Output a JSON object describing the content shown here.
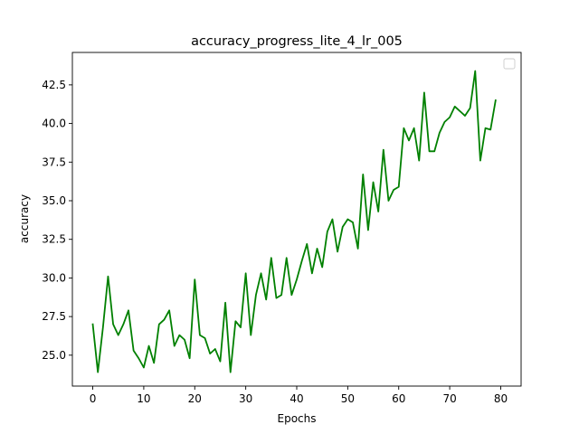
{
  "chart_data": {
    "type": "line",
    "title": "accuracy_progress_lite_4_lr_005",
    "xlabel": "Epochs",
    "ylabel": "accuracy",
    "xlim": [
      -4,
      84
    ],
    "ylim": [
      23.0,
      44.6
    ],
    "xticks": [
      0,
      10,
      20,
      30,
      40,
      50,
      60,
      70,
      80
    ],
    "yticks": [
      25.0,
      27.5,
      30.0,
      32.5,
      35.0,
      37.5,
      40.0,
      42.5
    ],
    "xtick_labels": [
      "0",
      "10",
      "20",
      "30",
      "40",
      "50",
      "60",
      "70",
      "80"
    ],
    "ytick_labels": [
      "25.0",
      "27.5",
      "30.0",
      "32.5",
      "35.0",
      "37.5",
      "40.0",
      "42.5"
    ],
    "grid": false,
    "legend": {
      "placement": "upper right",
      "entries": []
    },
    "series": [
      {
        "color": "#008000",
        "x": [
          0,
          1,
          2,
          3,
          4,
          5,
          6,
          7,
          8,
          9,
          10,
          11,
          12,
          13,
          14,
          15,
          16,
          17,
          18,
          19,
          20,
          21,
          22,
          23,
          24,
          25,
          26,
          27,
          28,
          29,
          30,
          31,
          32,
          33,
          34,
          35,
          36,
          37,
          38,
          39,
          40,
          41,
          42,
          43,
          44,
          45,
          46,
          47,
          48,
          49,
          50,
          51,
          52,
          53,
          54,
          55,
          56,
          57,
          58,
          59,
          60,
          61,
          62,
          63,
          64,
          65,
          66,
          67,
          68,
          69,
          70,
          71,
          72,
          73,
          74,
          75,
          76,
          77,
          78,
          79
        ],
        "values": [
          27.0,
          23.9,
          26.8,
          30.1,
          27.0,
          26.3,
          27.0,
          27.9,
          25.3,
          24.8,
          24.2,
          25.6,
          24.5,
          27.0,
          27.3,
          27.9,
          25.6,
          26.3,
          26.0,
          24.8,
          29.9,
          26.3,
          26.1,
          25.1,
          25.4,
          24.6,
          28.4,
          23.9,
          27.2,
          26.8,
          30.3,
          26.3,
          28.9,
          30.3,
          28.6,
          31.3,
          28.7,
          28.9,
          31.3,
          28.9,
          29.9,
          31.1,
          32.2,
          30.3,
          31.9,
          30.7,
          33.0,
          33.8,
          31.7,
          33.3,
          33.8,
          33.6,
          31.9,
          36.7,
          33.1,
          36.2,
          34.3,
          38.3,
          35.0,
          35.7,
          35.9,
          39.7,
          38.9,
          39.7,
          37.6,
          42.0,
          38.2,
          38.2,
          39.4,
          40.1,
          40.4,
          41.1,
          40.8,
          40.5,
          41.0,
          43.4,
          37.6,
          39.7,
          39.6,
          41.5
        ]
      }
    ]
  }
}
